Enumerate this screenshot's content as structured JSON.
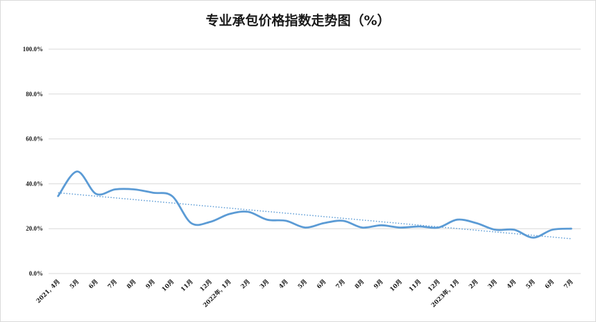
{
  "chart_data": {
    "type": "line",
    "title": "专业承包价格指数走势图（%）",
    "categories": [
      "2021, 4月",
      "5月",
      "6月",
      "7月",
      "8月",
      "9月",
      "10月",
      "11月",
      "12月",
      "2022年, 1月",
      "2月",
      "3月",
      "4月",
      "5月",
      "6月",
      "7月",
      "8月",
      "9月",
      "10月",
      "11月",
      "12月",
      "2023年, 1月",
      "2月",
      "3月",
      "4月",
      "5月",
      "6月",
      "7月"
    ],
    "series": [
      {
        "values": [
          34.5,
          45.5,
          35.5,
          37.5,
          37.5,
          36.0,
          34.5,
          22.5,
          23.0,
          26.5,
          27.5,
          24.0,
          23.5,
          20.5,
          22.5,
          23.5,
          20.5,
          21.5,
          20.5,
          21.0,
          20.5,
          24.0,
          22.5,
          19.5,
          19.5,
          16.0,
          19.5,
          20.0
        ]
      }
    ],
    "trendline": {
      "start": 36.0,
      "end": 15.5,
      "style": "dotted"
    },
    "ylim": [
      0,
      100
    ],
    "yticks": [
      "0.0%",
      "20.0%",
      "40.0%",
      "60.0%",
      "80.0%",
      "100.0%"
    ],
    "grid": true,
    "colors": {
      "line": "#5b9bd5",
      "trend": "#5b9bd5",
      "grid": "#d9d9d9"
    }
  }
}
